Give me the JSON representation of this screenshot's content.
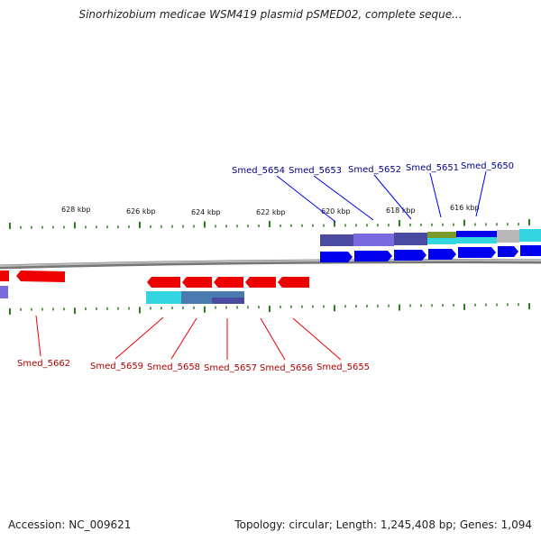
{
  "title": "Sinorhizobium medicae WSM419 plasmid pSMED02, complete seque...",
  "footer": {
    "accession": "Accession: NC_009621",
    "summary": "Topology: circular; Length: 1,245,408 bp; Genes: 1,094"
  },
  "scale_labels": [
    "628 kbp",
    "626 kbp",
    "624 kbp",
    "622 kbp",
    "620 kbp",
    "618 kbp",
    "616 kbp"
  ],
  "genes_top": [
    "Smed_5654",
    "Smed_5653",
    "Smed_5652",
    "Smed_5651",
    "Smed_5650"
  ],
  "genes_bottom": [
    "Smed_5662",
    "Smed_5659",
    "Smed_5658",
    "Smed_5657",
    "Smed_5656",
    "Smed_5655"
  ],
  "colors": {
    "forward_gene": "#0000ee",
    "reverse_gene": "#ee0000",
    "forward_label": "#00008b",
    "reverse_label": "#b00000",
    "tick": "#2e7d1f",
    "backbone": "#888888",
    "cyan_feature": "#33d6e0",
    "slate_feature": "#4a4aa0",
    "purple_feature": "#7a6be0",
    "olive_feature": "#7a9a2a",
    "gray_feature": "#b8b8b8"
  }
}
